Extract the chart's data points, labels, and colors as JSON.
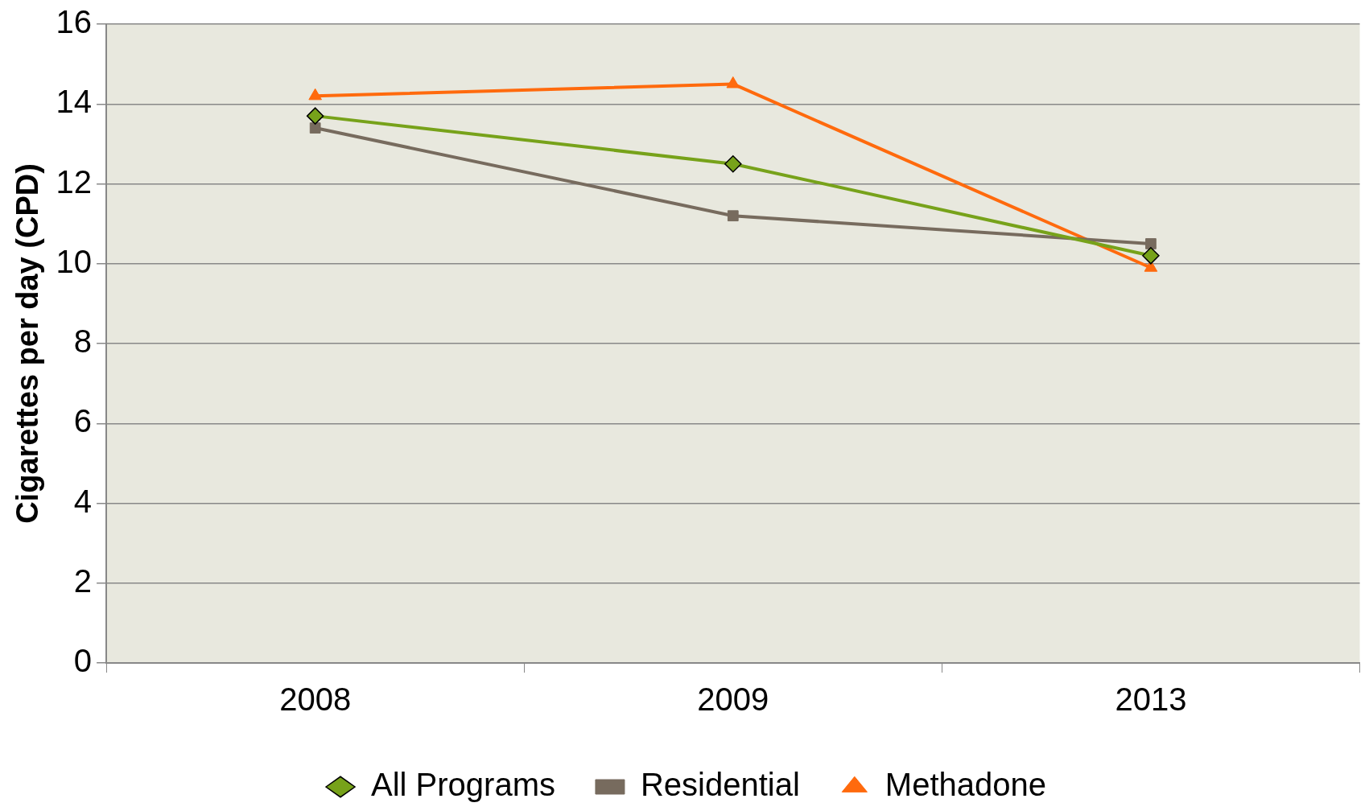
{
  "chart_data": {
    "type": "line",
    "ylabel": "Cigarettes per day (CPD)",
    "categories": [
      "2008",
      "2009",
      "2013"
    ],
    "series": [
      {
        "name": "All Programs",
        "color": "#77a21a",
        "marker": "diamond",
        "values": [
          13.7,
          12.5,
          10.2
        ]
      },
      {
        "name": "Residential",
        "color": "#776b5e",
        "marker": "square",
        "values": [
          13.4,
          11.2,
          10.5
        ]
      },
      {
        "name": "Methadone",
        "color": "#ff6a0d",
        "marker": "triangle",
        "values": [
          14.2,
          14.5,
          9.9
        ]
      }
    ],
    "ylim": [
      0,
      16
    ],
    "yticks": [
      0,
      2,
      4,
      6,
      8,
      10,
      12,
      14,
      16
    ],
    "grid": "y",
    "legend": "bottom",
    "line_style": "solid"
  }
}
